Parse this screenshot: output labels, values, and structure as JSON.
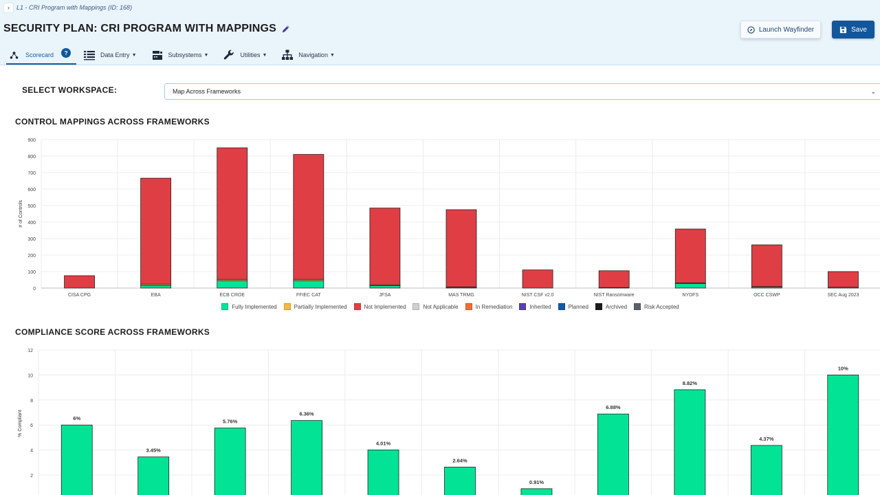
{
  "breadcrumb": {
    "toggle_icon": "chevron-right-icon",
    "text": "L1 - CRI Program with Mappings (ID: 168)"
  },
  "page": {
    "title": "SECURITY PLAN: CRI PROGRAM WITH MAPPINGS",
    "edit_icon": "pencil-icon"
  },
  "actions": {
    "wayfinder_label": "Launch Wayfinder",
    "wayfinder_icon": "compass-icon",
    "save_label": "Save",
    "save_icon": "floppy-disk-icon"
  },
  "nav": {
    "scorecard": "Scorecard",
    "help_badge": "?",
    "data_entry": "Data Entry",
    "subsystems": "Subsystems",
    "utilities": "Utilities",
    "navigation": "Navigation"
  },
  "workspace": {
    "label": "SELECT WORKSPACE:",
    "value": "Map Across Frameworks"
  },
  "colors": {
    "fully": "#03e396",
    "partial": "#f4b942",
    "not": "#e03e45",
    "na": "#d0d0d0",
    "remediation": "#f26c34",
    "inherited": "#5a3fae",
    "planned": "#1258a8",
    "archived": "#1c1c1c",
    "risk": "#5c6166"
  },
  "chart_data": [
    {
      "type": "bar",
      "stacked": true,
      "title": "CONTROL MAPPINGS ACROSS FRAMEWORKS",
      "xlabel": "",
      "ylabel": "# of Controls",
      "ylim": [
        0,
        900
      ],
      "yticks": [
        "0",
        "100",
        "200",
        "300",
        "400",
        "500",
        "600",
        "700",
        "800",
        "900"
      ],
      "grid": true,
      "legend_position": "bottom",
      "categories": [
        "CISA CPG",
        "EBA",
        "ECB CROE",
        "FFIEC CAT",
        "JFSA",
        "MAS TRMG",
        "NIST CSF v2.0",
        "NIST Ransomware",
        "NYDFS",
        "OCC CSWP",
        "SEC Aug 2023"
      ],
      "series": [
        {
          "name": "Fully Implemented",
          "color_key": "fully",
          "values": [
            0,
            15,
            45,
            45,
            15,
            5,
            0,
            3,
            28,
            7,
            5
          ]
        },
        {
          "name": "Partially Implemented",
          "color_key": "partial",
          "values": [
            0,
            8,
            8,
            8,
            5,
            2,
            0,
            0,
            3,
            2,
            0
          ]
        },
        {
          "name": "Not Implemented",
          "color_key": "not",
          "values": [
            75,
            643,
            797,
            757,
            465,
            468,
            110,
            102,
            327,
            253,
            95
          ]
        },
        {
          "name": "Not Applicable",
          "color_key": "na",
          "values": [
            0,
            0,
            0,
            0,
            0,
            0,
            0,
            0,
            0,
            0,
            0
          ]
        },
        {
          "name": "In Remediation",
          "color_key": "remediation",
          "values": [
            0,
            0,
            0,
            0,
            0,
            0,
            0,
            0,
            0,
            0,
            0
          ]
        },
        {
          "name": "Inherited",
          "color_key": "inherited",
          "values": [
            0,
            0,
            0,
            0,
            0,
            0,
            0,
            0,
            0,
            0,
            0
          ]
        },
        {
          "name": "Planned",
          "color_key": "planned",
          "values": [
            0,
            0,
            0,
            0,
            0,
            0,
            0,
            0,
            0,
            0,
            0
          ]
        },
        {
          "name": "Archived",
          "color_key": "archived",
          "values": [
            0,
            0,
            0,
            0,
            0,
            0,
            0,
            0,
            0,
            0,
            0
          ]
        },
        {
          "name": "Risk Accepted",
          "color_key": "risk",
          "values": [
            0,
            0,
            0,
            0,
            0,
            0,
            0,
            0,
            0,
            0,
            0
          ]
        }
      ]
    },
    {
      "type": "bar",
      "title": "COMPLIANCE SCORE ACROSS FRAMEWORKS",
      "xlabel": "",
      "ylabel": "% Compliant",
      "ylim": [
        0,
        12
      ],
      "yticks": [
        "2",
        "4",
        "6",
        "8",
        "10",
        "12"
      ],
      "grid": true,
      "values": [
        6,
        3.45,
        5.76,
        6.36,
        4.01,
        2.64,
        0.91,
        6.88,
        8.82,
        4.37,
        10
      ],
      "value_labels": [
        "6%",
        "3.45%",
        "5.76%",
        "6.36%",
        "4.01%",
        "2.64%",
        "0.91%",
        "6.88%",
        "8.82%",
        "4.37%",
        "10%"
      ]
    }
  ]
}
